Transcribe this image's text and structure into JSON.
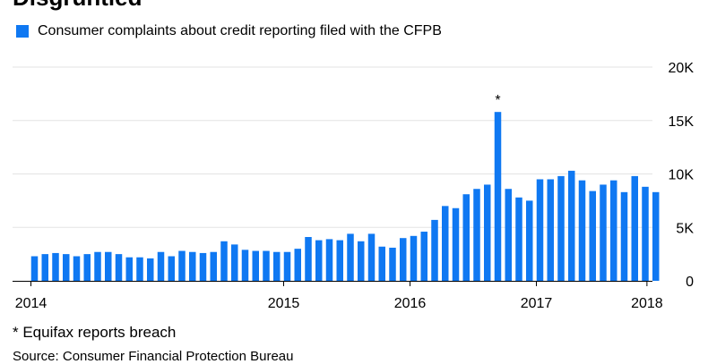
{
  "header": {
    "title": "Disgruntled"
  },
  "footer": {
    "footnote": "* Equifax reports breach",
    "source": "Source: Consumer Financial Protection Bureau"
  },
  "chart_data": {
    "type": "bar",
    "legend": "Consumer complaints about credit reporting filed with the CFPB",
    "color": "#0f78f2",
    "grid": true,
    "legend_position": "top-left",
    "y_axis_position": "right",
    "ylim": [
      0,
      20000
    ],
    "y_ticks": [
      {
        "value": 0,
        "label": "0"
      },
      {
        "value": 5000,
        "label": "5K"
      },
      {
        "value": 10000,
        "label": "10K"
      },
      {
        "value": 15000,
        "label": "15K"
      },
      {
        "value": 20000,
        "label": "20K"
      }
    ],
    "x_ticks": [
      {
        "index": 0,
        "label": "2014"
      },
      {
        "index": 24,
        "label": "2015"
      },
      {
        "index": 36,
        "label": "2016"
      },
      {
        "index": 48,
        "label": "2017"
      },
      {
        "index": 58.5,
        "label": "2018"
      }
    ],
    "annotations": [
      {
        "index": 44,
        "text": "*"
      }
    ],
    "values": [
      2300,
      2500,
      2600,
      2500,
      2300,
      2500,
      2700,
      2700,
      2500,
      2200,
      2200,
      2100,
      2700,
      2300,
      2800,
      2700,
      2600,
      2700,
      3700,
      3400,
      2900,
      2800,
      2800,
      2700,
      2700,
      3000,
      4100,
      3800,
      3900,
      3800,
      4400,
      3700,
      4400,
      3200,
      3100,
      4000,
      4200,
      4600,
      5700,
      7000,
      6800,
      8100,
      8600,
      9000,
      15800,
      8600,
      7800,
      7500,
      9500,
      9500,
      9800,
      10300,
      9400,
      8400,
      9000,
      9400,
      8300,
      9800,
      8800,
      8300
    ]
  }
}
